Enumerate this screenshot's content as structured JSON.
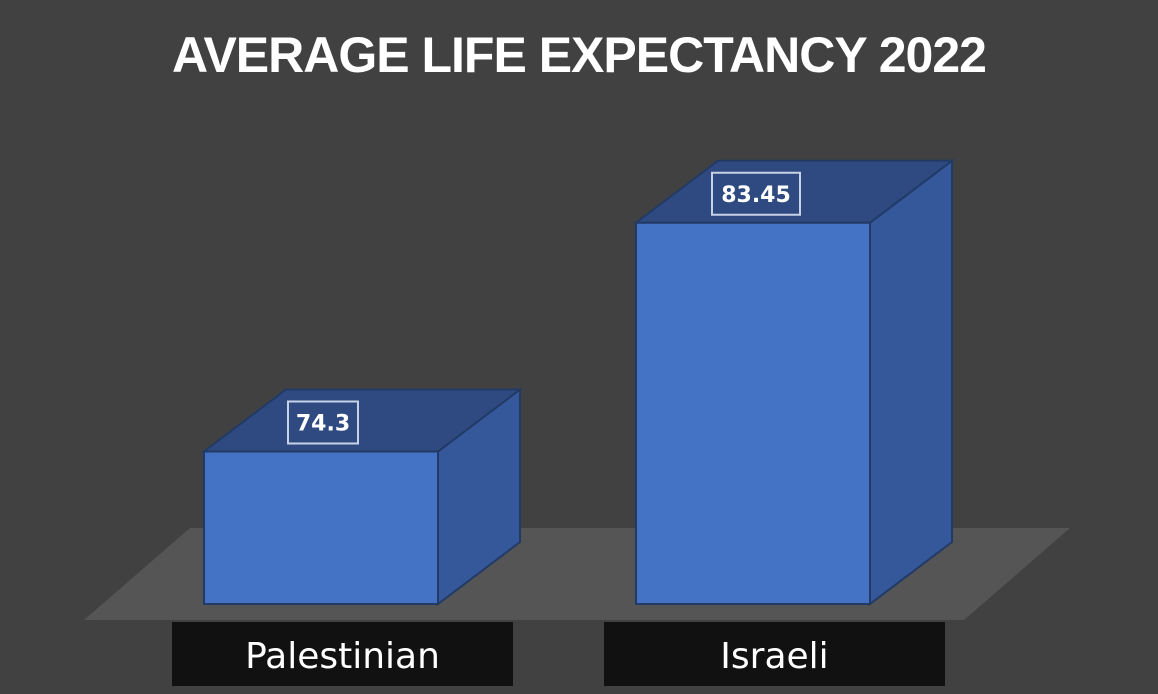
{
  "chart_data": {
    "type": "bar",
    "title": "AVERAGE LIFE EXPECTANCY 2022",
    "categories": [
      "Palestinian",
      "Israeli"
    ],
    "values": [
      74.3,
      83.45
    ],
    "data_labels": [
      "74.3",
      "83.45"
    ],
    "style": "3d-column",
    "ylim": [
      70,
      84
    ],
    "grid": false,
    "legend": "none",
    "colors": {
      "background": "#414141",
      "floor": "#555555",
      "bar_front": "#4472C4",
      "bar_top": "#2E4A80",
      "bar_side": "#35589A",
      "edge": "#223A66",
      "label_box": "#2E4A80",
      "category_box": "#111111",
      "text": "#ffffff"
    }
  }
}
